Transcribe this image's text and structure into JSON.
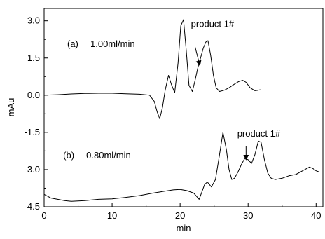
{
  "chart_data": {
    "type": "line",
    "xlabel": "min",
    "ylabel": "mAu",
    "xlim": [
      0,
      41
    ],
    "ylim": [
      -4.5,
      3.5
    ],
    "x_ticks": [
      0,
      10,
      20,
      30,
      40
    ],
    "y_ticks": [
      3.0,
      1.5,
      0.0,
      -1.5,
      -3.0,
      -4.5
    ],
    "y_tick_labels": [
      "3.0",
      "1.5",
      "0.0",
      "-1.5",
      "-3.0",
      "-4.5"
    ],
    "grid": false,
    "series": [
      {
        "x": [
          0,
          2,
          4,
          6,
          8,
          10,
          12,
          14,
          15.5,
          16.2,
          16.6,
          17.0,
          17.4,
          17.8,
          18.3,
          18.7,
          19.2,
          19.7,
          20.1,
          20.5,
          20.9,
          21.3,
          21.8,
          22.2,
          22.6,
          23.0,
          23.4,
          23.8,
          24.1,
          24.5,
          24.9,
          25.3,
          25.8,
          26.5,
          27.2,
          28.0,
          28.6,
          29.2,
          29.7,
          30.3,
          31.0,
          31.5,
          31.8
        ],
        "y": [
          0.0,
          0.02,
          0.05,
          0.07,
          0.08,
          0.08,
          0.06,
          0.04,
          0.0,
          -0.25,
          -0.65,
          -0.95,
          -0.5,
          0.2,
          0.8,
          0.45,
          0.1,
          1.3,
          2.8,
          3.05,
          1.8,
          0.4,
          0.15,
          0.6,
          1.1,
          1.5,
          1.9,
          2.15,
          2.2,
          1.6,
          0.8,
          0.3,
          0.15,
          0.2,
          0.3,
          0.45,
          0.55,
          0.6,
          0.52,
          0.3,
          0.18,
          0.2,
          0.22
        ]
      },
      {
        "x": [
          0,
          1,
          2,
          3,
          4,
          6,
          8,
          10,
          12,
          14,
          16,
          17.5,
          19,
          20,
          21,
          22,
          22.8,
          23.2,
          23.6,
          24.0,
          24.6,
          25.2,
          25.8,
          26.3,
          26.8,
          27.2,
          27.6,
          28.0,
          28.5,
          29.0,
          29.5,
          30.0,
          30.5,
          31.0,
          31.5,
          31.9,
          32.4,
          32.9,
          33.4,
          34,
          35,
          36,
          37,
          38,
          39,
          39.5,
          40,
          40.5,
          41
        ],
        "y": [
          -4.0,
          -4.15,
          -4.2,
          -4.25,
          -4.28,
          -4.25,
          -4.2,
          -4.18,
          -4.12,
          -4.05,
          -3.95,
          -3.88,
          -3.82,
          -3.8,
          -3.85,
          -3.95,
          -4.2,
          -3.9,
          -3.6,
          -3.5,
          -3.7,
          -3.4,
          -2.4,
          -1.5,
          -2.2,
          -3.0,
          -3.4,
          -3.35,
          -3.1,
          -2.8,
          -2.55,
          -2.6,
          -2.75,
          -2.4,
          -1.85,
          -1.9,
          -2.6,
          -3.15,
          -3.35,
          -3.4,
          -3.35,
          -3.25,
          -3.2,
          -3.05,
          -2.9,
          -2.95,
          -3.05,
          -3.1,
          -3.1
        ]
      }
    ],
    "annotations": [
      {
        "id": "label-a",
        "text": "(a)",
        "x": 3.4,
        "y": 1.95
      },
      {
        "id": "flow-a",
        "text": "1.00ml/min",
        "x": 6.8,
        "y": 1.95
      },
      {
        "id": "product-a",
        "text": "product 1#",
        "x": 21.6,
        "y": 2.75,
        "arrow_from": [
          22.2,
          1.95
        ],
        "arrow_to": [
          22.9,
          1.2
        ]
      },
      {
        "id": "label-b",
        "text": "(b)",
        "x": 2.8,
        "y": -2.55
      },
      {
        "id": "flow-b",
        "text": "0.80ml/min",
        "x": 6.2,
        "y": -2.55
      },
      {
        "id": "product-b",
        "text": "product 1#",
        "x": 28.4,
        "y": -1.68,
        "arrow_from": [
          29.7,
          -2.05
        ],
        "arrow_to": [
          29.7,
          -2.6
        ]
      }
    ]
  }
}
